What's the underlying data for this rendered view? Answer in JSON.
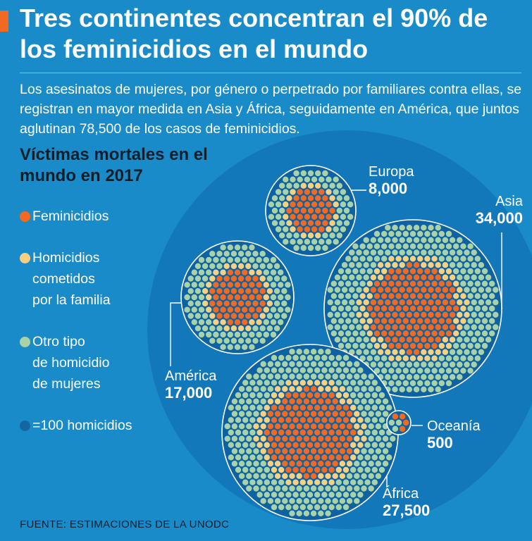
{
  "header": {
    "title": "Tres continentes concentran el 90% de los feminicidios en el mundo",
    "intro": "Los asesinatos de mujeres, por género o perpetrado por familiares contra ellas, se registran en mayor medida en Asia y África, seguidamente en América, que juntos aglutinan 78,500 de los casos de feminicidios."
  },
  "legend": {
    "items": [
      {
        "label": "Feminicidios",
        "color": "#f26a21"
      },
      {
        "label": "Homicidios\ncometidos\npor la familia",
        "color": "#f7d080"
      },
      {
        "label": "Otro tipo\nde homicidio\nde mujeres",
        "color": "#a9d2a8"
      }
    ],
    "unit_label": "=100 homicidios",
    "unit_color": "#1565a3"
  },
  "source": "FUENTE: ESTIMACIONES DE LA UNODC",
  "colors": {
    "background": "#1a8bc9",
    "big_circle": "#1378b9",
    "region_circle": "#0f62a1",
    "feminicidio": "#f26a21",
    "familia": "#f7d080",
    "otro": "#a9d2a8",
    "title_dark": "#0c1f2c"
  },
  "chart_data": {
    "type": "bubble",
    "title": "Víctimas mortales en el mundo en 2017",
    "unit": "=100 homicidios",
    "regions": [
      {
        "name": "Europa",
        "value_label": "8,000",
        "value": 8000
      },
      {
        "name": "Asia",
        "value_label": "34,000",
        "value": 34000
      },
      {
        "name": "América",
        "value_label": "17,000",
        "value": 17000
      },
      {
        "name": "África",
        "value_label": "27,500",
        "value": 27500
      },
      {
        "name": "Oceanía",
        "value_label": "500",
        "value": 500
      }
    ]
  }
}
